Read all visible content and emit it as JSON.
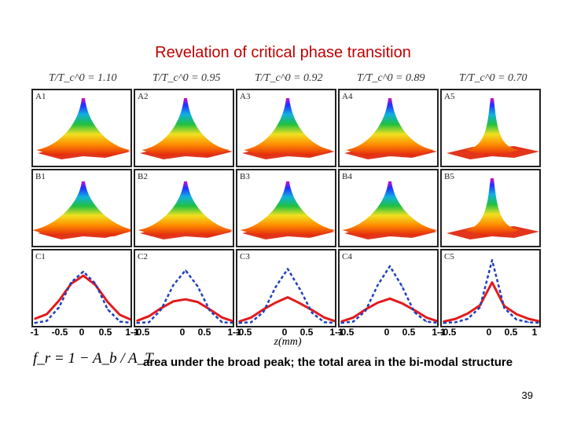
{
  "title": "Revelation of critical phase transition",
  "temperatures": [
    "T/T_c^0 = 1.10",
    "T/T_c^0 = 0.95",
    "T/T_c^0 = 0.92",
    "T/T_c^0 = 0.89",
    "T/T_c^0 = 0.70"
  ],
  "panel_labels": {
    "A": [
      "A1",
      "A2",
      "A3",
      "A4",
      "A5"
    ],
    "B": [
      "B1",
      "B2",
      "B3",
      "B4",
      "B5"
    ],
    "C": [
      "C1",
      "C2",
      "C3",
      "C4",
      "C5"
    ]
  },
  "x_tick_labels": [
    "-1",
    "-0.5",
    "0",
    "0.5",
    "1"
  ],
  "x_axis_label": "z(mm)",
  "formula": "f_r = 1 − A_b / A_T",
  "caption": "area under the broad peak; the total area in the bi-modal structure",
  "page_number": "39",
  "colors": {
    "title": "#c00000",
    "broad_profile": "#e31a1c",
    "narrow_profile": "#1f3fbf"
  },
  "chart_data": {
    "type": "line",
    "x": [
      -1,
      -0.75,
      -0.5,
      -0.25,
      0,
      0.25,
      0.5,
      0.75,
      1
    ],
    "xlabel": "z(mm)",
    "xlim": [
      -1,
      1
    ],
    "panels": [
      {
        "label": "C1",
        "series": [
          {
            "style": "solid-red",
            "values": [
              0.08,
              0.15,
              0.35,
              0.6,
              0.72,
              0.58,
              0.33,
              0.14,
              0.06
            ]
          },
          {
            "style": "dashed-blue",
            "values": [
              0.02,
              0.05,
              0.25,
              0.62,
              0.78,
              0.6,
              0.22,
              0.04,
              0.02
            ]
          }
        ]
      },
      {
        "label": "C2",
        "series": [
          {
            "style": "solid-red",
            "values": [
              0.05,
              0.12,
              0.24,
              0.34,
              0.37,
              0.33,
              0.22,
              0.1,
              0.04
            ]
          },
          {
            "style": "dashed-blue",
            "values": [
              0.02,
              0.03,
              0.22,
              0.58,
              0.8,
              0.56,
              0.2,
              0.03,
              0.02
            ]
          }
        ]
      },
      {
        "label": "C3",
        "series": [
          {
            "style": "solid-red",
            "values": [
              0.04,
              0.1,
              0.22,
              0.32,
              0.4,
              0.31,
              0.21,
              0.1,
              0.04
            ]
          },
          {
            "style": "dashed-blue",
            "values": [
              0.02,
              0.03,
              0.18,
              0.55,
              0.82,
              0.52,
              0.17,
              0.03,
              0.02
            ]
          }
        ]
      },
      {
        "label": "C4",
        "series": [
          {
            "style": "solid-red",
            "values": [
              0.04,
              0.1,
              0.22,
              0.32,
              0.38,
              0.31,
              0.21,
              0.1,
              0.04
            ]
          },
          {
            "style": "dashed-blue",
            "values": [
              0.02,
              0.04,
              0.2,
              0.58,
              0.86,
              0.56,
              0.18,
              0.04,
              0.02
            ]
          }
        ]
      },
      {
        "label": "C5",
        "series": [
          {
            "style": "solid-red",
            "values": [
              0.04,
              0.08,
              0.16,
              0.28,
              0.62,
              0.27,
              0.15,
              0.08,
              0.04
            ]
          },
          {
            "style": "dashed-blue",
            "values": [
              0.02,
              0.03,
              0.08,
              0.25,
              0.95,
              0.24,
              0.07,
              0.03,
              0.02
            ]
          }
        ]
      }
    ]
  }
}
